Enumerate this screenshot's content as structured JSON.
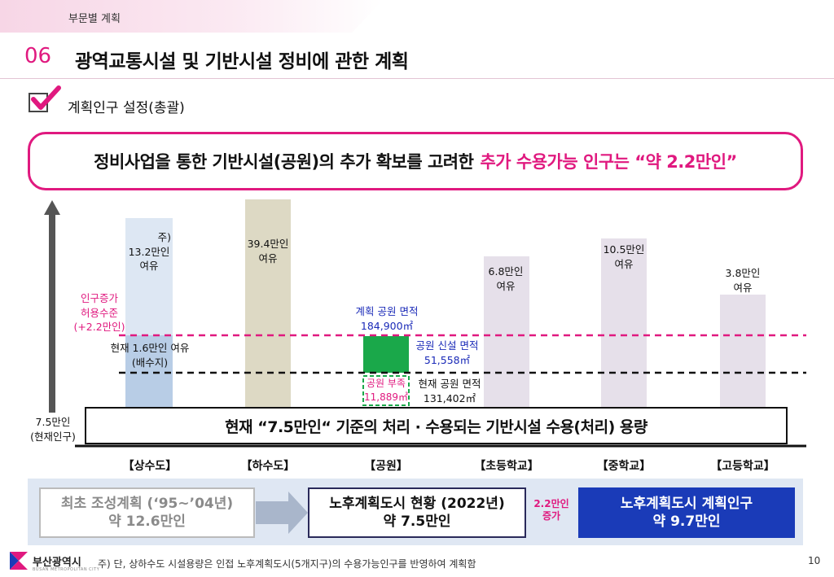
{
  "header": {
    "section_label": "부문별 계획",
    "number": "06",
    "title": "광역교통시설 및 기반시설 정비에 관한 계획"
  },
  "subtitle": "계획인구 설정(총괄)",
  "callout": {
    "prefix": "정비사업을 통한 기반시설(공원)의 추가 확보를 고려한",
    "highlight": "추가 수용가능 인구는 “약 2.2만인”"
  },
  "chart": {
    "y_axis_bottom_label_1": "7.5만인",
    "y_axis_bottom_label_2": "(현재인구)",
    "growth_limit_1": "인구증가",
    "growth_limit_2": "허용수준",
    "growth_limit_3": "(+2.2만인)",
    "water_current_1": "현재 1.6만인 여유",
    "water_current_2": "(배수지)",
    "water_note_1": "주)",
    "water_note_2": "13.2만인",
    "water_note_3": "여유",
    "sewer_1": "39.4만인",
    "sewer_2": "여유",
    "park_planned_1": "계획 공원 면적",
    "park_planned_2": "184,900㎡",
    "park_new_1": "공원 신설 면적",
    "park_new_2": "51,558㎡",
    "park_short_1": "공원 부족",
    "park_short_2": "11,889㎡",
    "park_current_1": "현재 공원 면적",
    "park_current_2": "131,402㎡",
    "elementary_1": "6.8만인",
    "elementary_2": "여유",
    "middle_1": "10.5만인",
    "middle_2": "여유",
    "high_1": "3.8만인",
    "high_2": "여유",
    "baseline_text": "현재 “7.5만인“ 기준의 처리 · 수용되는 기반시설 수용(처리) 용량",
    "categories": [
      "【상수도】",
      "【하수도】",
      "【공원】",
      "【초등학교】",
      "【중학교】",
      "【고등학교】"
    ]
  },
  "flow": {
    "step1_line1": "최초 조성계획 (‘95~’04년)",
    "step1_line2": "약 12.6만인",
    "step2_line1": "노후계획도시 현황 (2022년)",
    "step2_line2": "약 7.5만인",
    "increase_1": "2.2만인",
    "increase_2": "증가",
    "step3_line1": "노후계획도시 계획인구",
    "step3_line2": "약 9.7만인"
  },
  "footer": {
    "org": "부산광역시",
    "org_en": "BUSAN METROPOLITAN CITY",
    "note": "주) 단, 상하수도 시설용량은 인접 노후계획도시(5개지구)의 수용가능인구를 반영하여 계획함",
    "page": "10"
  },
  "colors": {
    "accent": "#e0197f",
    "navy": "#1a3bb8",
    "water_bar": "#c9d9ee",
    "sewer_bar": "#ddd9c4",
    "school_bar": "#e4dde9",
    "park_green": "#1aa84a"
  }
}
